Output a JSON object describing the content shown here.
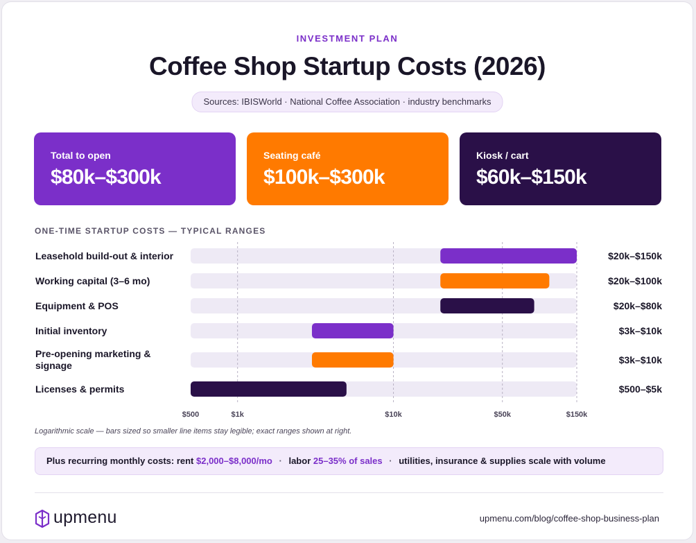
{
  "header": {
    "eyebrow": "INVESTMENT PLAN",
    "title": "Coffee Shop Startup Costs (2026)",
    "sources": "Sources: IBISWorld · National Coffee Association · industry benchmarks"
  },
  "kpis": [
    {
      "label": "Total to open",
      "value": "$80k–$300k",
      "color": "#7b2fc9"
    },
    {
      "label": "Seating café",
      "value": "$100k–$300k",
      "color": "#ff7a00"
    },
    {
      "label": "Kiosk / cart",
      "value": "$60k–$150k",
      "color": "#2a1048"
    }
  ],
  "section_label": "ONE-TIME STARTUP COSTS — TYPICAL RANGES",
  "chart_data": {
    "type": "bar",
    "orientation": "horizontal-range",
    "x_scale": "log",
    "xlim": [
      500,
      150000
    ],
    "x_ticks": [
      {
        "value": 500,
        "label": "$500"
      },
      {
        "value": 1000,
        "label": "$1k"
      },
      {
        "value": 10000,
        "label": "$10k"
      },
      {
        "value": 50000,
        "label": "$50k"
      },
      {
        "value": 150000,
        "label": "$150k"
      }
    ],
    "gridlines_at": [
      1000,
      10000,
      50000,
      150000
    ],
    "rows": [
      {
        "label": "Leasehold build-out & interior",
        "low": 20000,
        "high": 150000,
        "range_label": "$20k–$150k",
        "color": "#7b2fc9"
      },
      {
        "label": "Working capital (3–6 mo)",
        "low": 20000,
        "high": 100000,
        "range_label": "$20k–$100k",
        "color": "#ff7a00"
      },
      {
        "label": "Equipment & POS",
        "low": 20000,
        "high": 80000,
        "range_label": "$20k–$80k",
        "color": "#2a1048"
      },
      {
        "label": "Initial inventory",
        "low": 3000,
        "high": 10000,
        "range_label": "$3k–$10k",
        "color": "#7b2fc9"
      },
      {
        "label": "Pre-opening marketing & signage",
        "low": 3000,
        "high": 10000,
        "range_label": "$3k–$10k",
        "color": "#ff7a00"
      },
      {
        "label": "Licenses & permits",
        "low": 500,
        "high": 5000,
        "range_label": "$500–$5k",
        "color": "#2a1048"
      }
    ],
    "track_color": "#eeeaf5"
  },
  "note": "Logarithmic scale — bars sized so smaller line items stay legible; exact ranges shown at right.",
  "recurring": {
    "prefix": "Plus recurring monthly costs: rent",
    "rent": "$2,000–$8,000/mo",
    "dot": "·",
    "labor_prefix": "labor",
    "labor": "25–35% of sales",
    "suffix": "utilities, insurance & supplies scale with volume"
  },
  "footer": {
    "logo_text": "upmenu",
    "logo_icon": "upmenu-logo-icon",
    "url": "upmenu.com/blog/coffee-shop-business-plan"
  }
}
